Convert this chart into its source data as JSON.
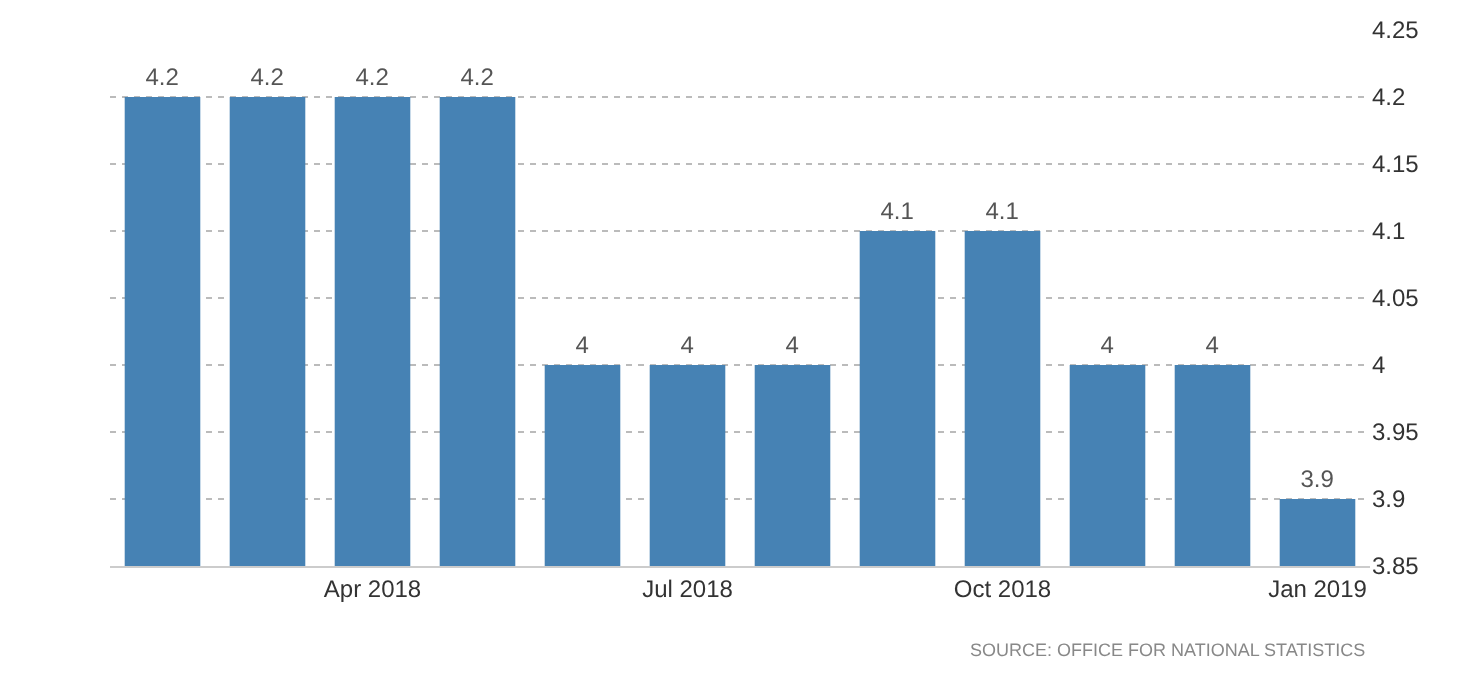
{
  "chart_data": {
    "type": "bar",
    "categories": [
      null,
      null,
      "Apr 2018",
      null,
      null,
      "Jul 2018",
      null,
      null,
      "Oct 2018",
      null,
      null,
      "Jan 2019"
    ],
    "values": [
      4.2,
      4.2,
      4.2,
      4.2,
      4,
      4,
      4,
      4.1,
      4.1,
      4,
      4,
      3.9
    ],
    "color": "#4682b4",
    "ylim": [
      3.85,
      4.25
    ],
    "yticks": [
      3.85,
      3.9,
      3.95,
      4,
      4.05,
      4.1,
      4.15,
      4.2,
      4.25
    ],
    "grid": "y",
    "data_labels": true,
    "annotations": [
      "SOURCE: OFFICE FOR NATIONAL STATISTICS"
    ]
  }
}
